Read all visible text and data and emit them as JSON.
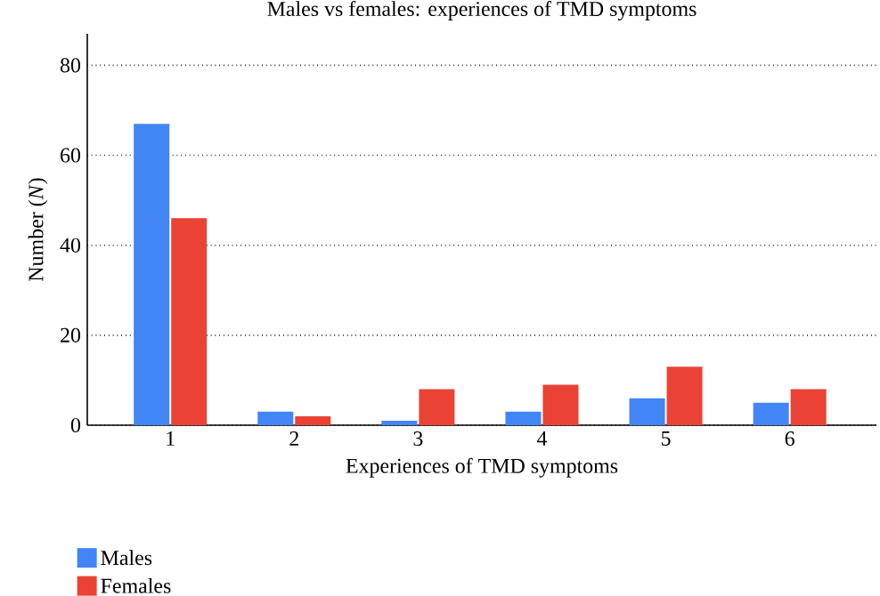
{
  "chart_data": {
    "type": "bar",
    "title": "Males vs females: experiences of TMD symptoms",
    "xlabel": "Experiences of TMD symptoms",
    "ylabel": "Number (*N*)",
    "categories": [
      "1",
      "2",
      "3",
      "4",
      "5",
      "6"
    ],
    "series": [
      {
        "name": "Males",
        "color": "#4285f4",
        "values": [
          67,
          3,
          1,
          3,
          6,
          5
        ]
      },
      {
        "name": "Females",
        "color": "#ea4335",
        "values": [
          46,
          2,
          8,
          9,
          13,
          8
        ]
      }
    ],
    "ylim": [
      0,
      87
    ],
    "yticks": [
      0,
      20,
      40,
      60,
      80
    ],
    "grid": "y",
    "legend": "bottom left"
  }
}
